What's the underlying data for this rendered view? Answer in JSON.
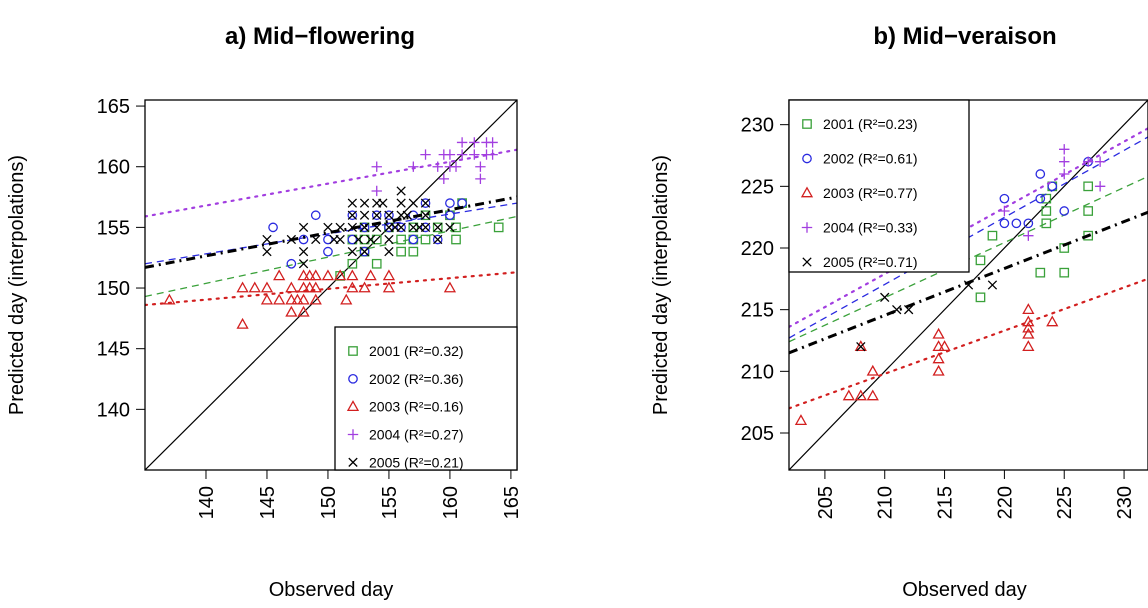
{
  "chart_data": [
    {
      "type": "scatter",
      "title": "a) Mid−flowering",
      "xlabel": "Observed day",
      "ylabel": "Predicted day (interpolations)",
      "xlim": [
        135,
        165.5
      ],
      "ylim": [
        135,
        165.5
      ],
      "xticks": [
        "140",
        "145",
        "150",
        "155",
        "160",
        "165"
      ],
      "yticks": [
        "140",
        "145",
        "150",
        "155",
        "160",
        "165"
      ],
      "legend_position": "bottom-right",
      "one_to_one_line": true,
      "series": [
        {
          "name": "2001 (R²=0.32)",
          "color": "#3aa13a",
          "marker": "square",
          "line": {
            "style": "dashed",
            "x": [
              135,
              165.5
            ],
            "y": [
              149.3,
              155.9
            ]
          },
          "points": [
            [
              152,
              154
            ],
            [
              153,
              153
            ],
            [
              153,
              154
            ],
            [
              154,
              152
            ],
            [
              154,
              154
            ],
            [
              155,
              155
            ],
            [
              156,
              153
            ],
            [
              157,
              155
            ],
            [
              157,
              154
            ],
            [
              158,
              156
            ],
            [
              157,
              153
            ],
            [
              158,
              154
            ],
            [
              159,
              155
            ],
            [
              160,
              156
            ],
            [
              160.5,
              154
            ],
            [
              160.5,
              155
            ],
            [
              161,
              157
            ],
            [
              164,
              155
            ],
            [
              152,
              152
            ],
            [
              151,
              151
            ],
            [
              153,
              155
            ],
            [
              156,
              154
            ]
          ]
        },
        {
          "name": "2002 (R²=0.36)",
          "color": "#2a2ae0",
          "marker": "circle",
          "line": {
            "style": "dashed",
            "x": [
              135,
              165.5
            ],
            "y": [
              152.0,
              157.0
            ]
          },
          "points": [
            [
              145.5,
              155
            ],
            [
              147,
              152
            ],
            [
              148,
              154
            ],
            [
              149,
              156
            ],
            [
              150,
              153
            ],
            [
              150,
              154
            ],
            [
              152,
              156
            ],
            [
              152,
              154
            ],
            [
              153,
              155
            ],
            [
              154,
              156
            ],
            [
              155,
              156
            ],
            [
              156,
              155
            ],
            [
              157,
              156
            ],
            [
              157,
              154
            ],
            [
              158,
              157
            ],
            [
              158,
              155
            ],
            [
              159,
              154
            ],
            [
              160,
              157
            ],
            [
              160,
              156
            ],
            [
              161,
              157
            ],
            [
              153,
              153
            ],
            [
              155,
              155
            ]
          ]
        },
        {
          "name": "2003 (R²=0.16)",
          "color": "#d21f1f",
          "marker": "triangle",
          "line": {
            "style": "dotted",
            "x": [
              135,
              165.5
            ],
            "y": [
              148.6,
              151.3
            ]
          },
          "points": [
            [
              137,
              149
            ],
            [
              143,
              147
            ],
            [
              143,
              150
            ],
            [
              144,
              150
            ],
            [
              145,
              149
            ],
            [
              145,
              150
            ],
            [
              146,
              151
            ],
            [
              146,
              149
            ],
            [
              147,
              148
            ],
            [
              147,
              149
            ],
            [
              147,
              150
            ],
            [
              147.5,
              149
            ],
            [
              148,
              148
            ],
            [
              148,
              149
            ],
            [
              148,
              150
            ],
            [
              148,
              151
            ],
            [
              148.5,
              150
            ],
            [
              149,
              149
            ],
            [
              149,
              150
            ],
            [
              149,
              151
            ],
            [
              150,
              151
            ],
            [
              151,
              151
            ],
            [
              151.5,
              149
            ],
            [
              152,
              150
            ],
            [
              152,
              151
            ],
            [
              153,
              150
            ],
            [
              153.5,
              151
            ],
            [
              155,
              151
            ],
            [
              155,
              150
            ],
            [
              160,
              150
            ],
            [
              148.5,
              151
            ]
          ]
        },
        {
          "name": "2004 (R²=0.27)",
          "color": "#a23ee0",
          "marker": "plus",
          "line": {
            "style": "dotted",
            "x": [
              135,
              165.5
            ],
            "y": [
              155.9,
              161.4
            ]
          },
          "points": [
            [
              154,
              160
            ],
            [
              154,
              158
            ],
            [
              157,
              160
            ],
            [
              158,
              161
            ],
            [
              159,
              160
            ],
            [
              159.5,
              161
            ],
            [
              159.5,
              159
            ],
            [
              160,
              161
            ],
            [
              160,
              160
            ],
            [
              160.5,
              160
            ],
            [
              161,
              161
            ],
            [
              161,
              162
            ],
            [
              162,
              162
            ],
            [
              162,
              161
            ],
            [
              162.5,
              160
            ],
            [
              162.5,
              159
            ],
            [
              163,
              161
            ],
            [
              163,
              162
            ],
            [
              163.5,
              162
            ],
            [
              163.5,
              161
            ]
          ]
        },
        {
          "name": "2005 (R²=0.21)",
          "color": "#000000",
          "marker": "cross",
          "line": {
            "style": "dashdot",
            "x": [
              135,
              165.5
            ],
            "y": [
              151.7,
              157.5
            ]
          },
          "points": [
            [
              145,
              154
            ],
            [
              145,
              153
            ],
            [
              147,
              154
            ],
            [
              148,
              155
            ],
            [
              148,
              153
            ],
            [
              148,
              152
            ],
            [
              149,
              154
            ],
            [
              150,
              155
            ],
            [
              150.5,
              154
            ],
            [
              151,
              154
            ],
            [
              151,
              155
            ],
            [
              152,
              156
            ],
            [
              152,
              157
            ],
            [
              152,
              155
            ],
            [
              152.5,
              154
            ],
            [
              153,
              156
            ],
            [
              153,
              157
            ],
            [
              153,
              155
            ],
            [
              153,
              153
            ],
            [
              153.5,
              154
            ],
            [
              154,
              157
            ],
            [
              154,
              156
            ],
            [
              154,
              155
            ],
            [
              154.5,
              157
            ],
            [
              155,
              156
            ],
            [
              155,
              155
            ],
            [
              155,
              154
            ],
            [
              155,
              153
            ],
            [
              155.5,
              155
            ],
            [
              156,
              156
            ],
            [
              156,
              157
            ],
            [
              156,
              155
            ],
            [
              156,
              158
            ],
            [
              156.5,
              156
            ],
            [
              157,
              155
            ],
            [
              157,
              157
            ],
            [
              157.5,
              155
            ],
            [
              158,
              157
            ],
            [
              158,
              155
            ],
            [
              158,
              156
            ],
            [
              159,
              155
            ],
            [
              159,
              154
            ],
            [
              160,
              155
            ],
            [
              152,
              153
            ]
          ]
        }
      ]
    },
    {
      "type": "scatter",
      "title": "b) Mid−veraison",
      "xlabel": "Observed day",
      "ylabel": "Predicted day (interpolations)",
      "xlim": [
        202,
        232
      ],
      "ylim": [
        202,
        232
      ],
      "xticks": [
        "205",
        "210",
        "215",
        "220",
        "225",
        "230"
      ],
      "yticks": [
        "205",
        "210",
        "215",
        "220",
        "225",
        "230"
      ],
      "legend_position": "top-left",
      "one_to_one_line": true,
      "series": [
        {
          "name": "2001 (R²=0.23)",
          "color": "#3aa13a",
          "marker": "square",
          "line": {
            "style": "dashed",
            "x": [
              202,
              232
            ],
            "y": [
              212.4,
              225.8
            ]
          },
          "points": [
            [
              218,
              216
            ],
            [
              218,
              219
            ],
            [
              219,
              221
            ],
            [
              223,
              218
            ],
            [
              223.5,
              222
            ],
            [
              223.5,
              223
            ],
            [
              224,
              225
            ],
            [
              225,
              218
            ],
            [
              225,
              220
            ],
            [
              227,
              221
            ],
            [
              227,
              223
            ],
            [
              227,
              225
            ],
            [
              223.5,
              224
            ]
          ]
        },
        {
          "name": "2002 (R²=0.61)",
          "color": "#2a2ae0",
          "marker": "circle",
          "line": {
            "style": "dashed",
            "x": [
              202,
              232
            ],
            "y": [
              212.7,
              229.0
            ]
          },
          "points": [
            [
              216,
              220
            ],
            [
              220,
              222
            ],
            [
              220,
              224
            ],
            [
              221,
              222
            ],
            [
              222,
              222
            ],
            [
              223,
              224
            ],
            [
              223,
              226
            ],
            [
              225,
              223
            ],
            [
              227,
              227
            ],
            [
              224,
              225
            ]
          ]
        },
        {
          "name": "2003 (R²=0.77)",
          "color": "#d21f1f",
          "marker": "triangle",
          "line": {
            "style": "dotted",
            "x": [
              202,
              232
            ],
            "y": [
              207.0,
              217.5
            ]
          },
          "points": [
            [
              203,
              206
            ],
            [
              207,
              208
            ],
            [
              208,
              208
            ],
            [
              208,
              212
            ],
            [
              209,
              208
            ],
            [
              209,
              210
            ],
            [
              214.5,
              210
            ],
            [
              214.5,
              211
            ],
            [
              214.5,
              212
            ],
            [
              214.5,
              213
            ],
            [
              215,
              212
            ],
            [
              222,
              212
            ],
            [
              222,
              213
            ],
            [
              222,
              214
            ],
            [
              222,
              215
            ],
            [
              224,
              214
            ],
            [
              222,
              213.5
            ]
          ]
        },
        {
          "name": "2004 (R²=0.33)",
          "color": "#a23ee0",
          "marker": "plus",
          "line": {
            "style": "dotted",
            "x": [
              202,
              232
            ],
            "y": [
              213.6,
              229.7
            ]
          },
          "points": [
            [
              220,
              223
            ],
            [
              222,
              221
            ],
            [
              225,
              226
            ],
            [
              225,
              227
            ],
            [
              225,
              228
            ],
            [
              227,
              227
            ],
            [
              228,
              225
            ],
            [
              228,
              227
            ]
          ]
        },
        {
          "name": "2005 (R²=0.71)",
          "color": "#000000",
          "marker": "cross",
          "line": {
            "style": "dashdot",
            "x": [
              202,
              232
            ],
            "y": [
              211.5,
              222.9
            ]
          },
          "points": [
            [
              208,
              212
            ],
            [
              210,
              216
            ],
            [
              211,
              215
            ],
            [
              212,
              215
            ],
            [
              217,
              217
            ],
            [
              219,
              217
            ]
          ]
        }
      ]
    }
  ]
}
